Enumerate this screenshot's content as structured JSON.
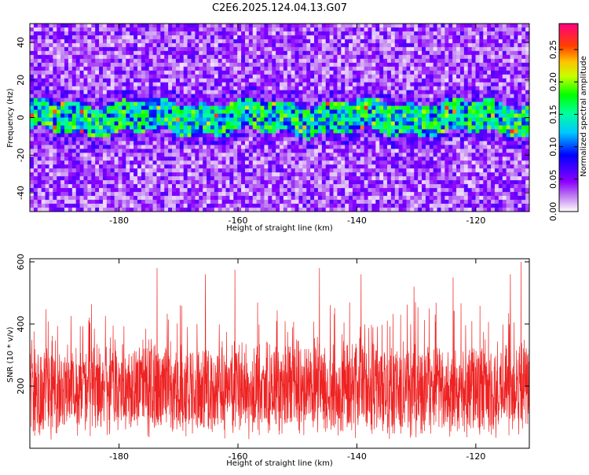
{
  "title": "C2E6.2025.124.04.13.G07",
  "colors": {
    "snr_line": "#ee2222",
    "colormap": [
      "#ffffff",
      "#a020f0",
      "#0000ff",
      "#00ffff",
      "#00ff00",
      "#ffff00",
      "#ff8000",
      "#ff0000",
      "#ff0080"
    ]
  },
  "chart_data": [
    {
      "type": "heatmap",
      "ylabel": "Frequency (Hz)",
      "xlabel": "Height of straight line (km)",
      "xlim": [
        -195,
        -111
      ],
      "ylim": [
        -50,
        50
      ],
      "xticks": [
        -180,
        -160,
        -140,
        -120
      ],
      "yticks": [
        -40,
        -20,
        0,
        20,
        40
      ],
      "signal_band_center_hz": 0,
      "signal_band_halfwidth_hz": 8,
      "colorbar": {
        "label": "Normalized spectral amplitude",
        "range": [
          0.0,
          0.29
        ],
        "ticks": [
          "0.00",
          "0.05",
          "0.10",
          "0.15",
          "0.20",
          "0.25"
        ]
      }
    },
    {
      "type": "line",
      "ylabel": "SNR (10 * v/v)",
      "xlabel": "Height of straight line (km)",
      "xlim": [
        -195,
        -111
      ],
      "ylim": [
        0,
        610
      ],
      "xticks": [
        -180,
        -160,
        -140,
        -120
      ],
      "yticks": [
        200,
        400,
        600
      ],
      "typical_range": [
        50,
        330
      ],
      "mean": 190,
      "peaks": [
        {
          "x": -173.6,
          "y": 580
        },
        {
          "x": -165.5,
          "y": 560
        },
        {
          "x": -160.5,
          "y": 575
        },
        {
          "x": -146.3,
          "y": 580
        },
        {
          "x": -139.3,
          "y": 560
        },
        {
          "x": -130.4,
          "y": 520
        },
        {
          "x": -123.8,
          "y": 550
        },
        {
          "x": -114.2,
          "y": 560
        },
        {
          "x": -112.4,
          "y": 600
        }
      ]
    }
  ]
}
